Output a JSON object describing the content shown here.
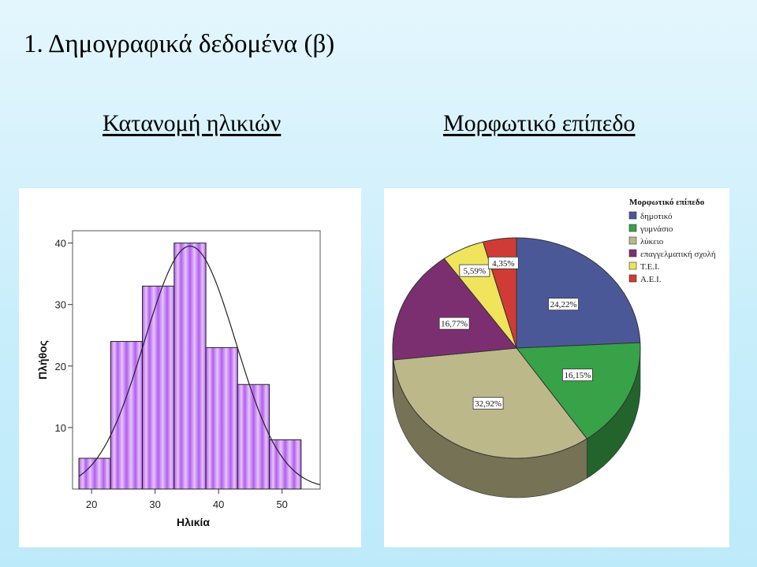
{
  "slide": {
    "title": "1.  Δημογραφικά δεδομένα (β)",
    "left_subtitle": "Κατανομή ηλικιών",
    "right_subtitle": "Μορφωτικό επίπεδο"
  },
  "chart_data": [
    {
      "type": "bar",
      "subtype": "histogram",
      "title": "",
      "xlabel": "Ηλικία",
      "ylabel": "Πλήθος",
      "bins": [
        [
          18,
          23
        ],
        [
          23,
          28
        ],
        [
          28,
          33
        ],
        [
          33,
          38
        ],
        [
          38,
          43
        ],
        [
          43,
          48
        ],
        [
          48,
          53
        ]
      ],
      "values": [
        5,
        24,
        33,
        40,
        23,
        17,
        8
      ],
      "xlim": [
        17,
        56
      ],
      "ylim": [
        0,
        42
      ],
      "xticks": [
        20,
        30,
        40,
        50
      ],
      "yticks": [
        10,
        20,
        30,
        40
      ],
      "normal_curve": {
        "mean": 35.5,
        "sd": 7.2,
        "peak": 39.5
      },
      "bar_color": "#cc8ff0",
      "grid": false
    },
    {
      "type": "pie",
      "title": "Μορφωτικό επίπεδο",
      "legend_position": "top-right",
      "slices": [
        {
          "label": "δημοτικό",
          "value": 24.22,
          "value_label": "24,22%",
          "color": "#4b5898"
        },
        {
          "label": "γυμνάσιο",
          "value": 16.15,
          "value_label": "16,15%",
          "color": "#37a247"
        },
        {
          "label": "λύκειο",
          "value": 32.92,
          "value_label": "32,92%",
          "color": "#bdb88a"
        },
        {
          "label": "επαγγελματική σχολή",
          "value": 16.77,
          "value_label": "16,77%",
          "color": "#7c2f70"
        },
        {
          "label": "Τ.Ε.Ι.",
          "value": 5.59,
          "value_label": "5,59%",
          "color": "#efe45c"
        },
        {
          "label": "Α.Ε.Ι.",
          "value": 4.35,
          "value_label": "4,35%",
          "color": "#d13b35"
        }
      ]
    }
  ]
}
